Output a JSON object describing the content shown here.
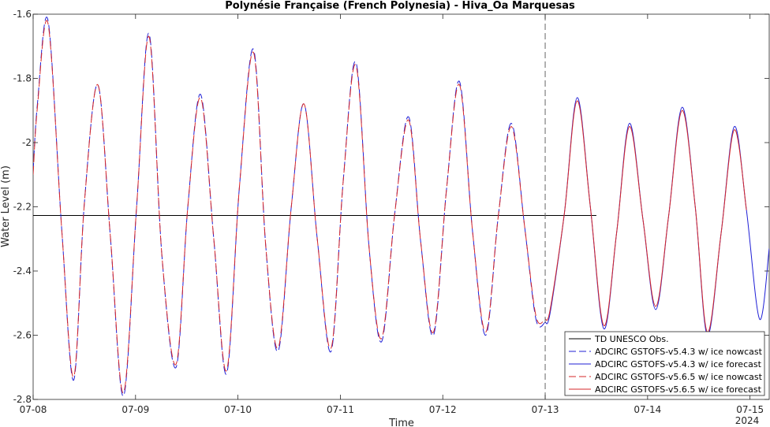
{
  "chart_data": {
    "type": "line",
    "title": "Polynésie Française (French Polynesia) - Hiva_Oa Marquesas",
    "xlabel": "Time",
    "ylabel": "Water Level (m)",
    "x_unit": "day",
    "xlim": [
      "2024-07-08 00:00",
      "2024-07-15 04:30"
    ],
    "ylim": [
      -2.8,
      -1.6
    ],
    "x_ticks": [
      {
        "x": "2024-07-08",
        "label": "07-08"
      },
      {
        "x": "2024-07-09",
        "label": "07-09"
      },
      {
        "x": "2024-07-10",
        "label": "07-10"
      },
      {
        "x": "2024-07-11",
        "label": "07-11"
      },
      {
        "x": "2024-07-12",
        "label": "07-12"
      },
      {
        "x": "2024-07-13",
        "label": "07-13"
      },
      {
        "x": "2024-07-14",
        "label": "07-14"
      },
      {
        "x": "2024-07-15",
        "label": "07-15"
      }
    ],
    "x_year_label": "2024",
    "y_ticks": [
      {
        "y": -2.8,
        "label": "-2.8"
      },
      {
        "y": -2.6,
        "label": "-2.6"
      },
      {
        "y": -2.4,
        "label": "-2.4"
      },
      {
        "y": -2.2,
        "label": "-2.2"
      },
      {
        "y": -2.0,
        "label": "-2"
      },
      {
        "y": -1.8,
        "label": "-1.8"
      },
      {
        "y": -1.6,
        "label": "-1.6"
      }
    ],
    "nowcast_end": "2024-07-13 00:00",
    "grid": false,
    "legend_position": "bottom-right",
    "series": [
      {
        "name": "TD UNESCO Obs.",
        "color": "#000000",
        "dash": "solid",
        "x": [
          "2024-07-08 00:00",
          "2024-07-13 12:00"
        ],
        "y": [
          -2.227,
          -2.227
        ]
      },
      {
        "name": "ADCIRC GSTOFS-v5.4.3 w/ ice nowcast",
        "color": "#1f1fd6",
        "dash": "dashed",
        "x": [
          "2024-07-08 00:00",
          "2024-07-08 01:00",
          "2024-07-08 03:30",
          "2024-07-08 06:45",
          "2024-07-08 09:30",
          "2024-07-08 12:00",
          "2024-07-08 15:10",
          "2024-07-08 18:05",
          "2024-07-08 21:10",
          "2024-07-09 00:15",
          "2024-07-09 03:10",
          "2024-07-09 06:10",
          "2024-07-09 09:30",
          "2024-07-09 12:15",
          "2024-07-09 15:15",
          "2024-07-09 18:20",
          "2024-07-09 21:20",
          "2024-07-10 00:20",
          "2024-07-10 03:40",
          "2024-07-10 06:30",
          "2024-07-10 09:25",
          "2024-07-10 12:30",
          "2024-07-10 15:30",
          "2024-07-10 18:35",
          "2024-07-10 21:50",
          "2024-07-11 00:40",
          "2024-07-11 03:40",
          "2024-07-11 06:45",
          "2024-07-11 09:40",
          "2024-07-11 12:45",
          "2024-07-11 16:00",
          "2024-07-11 18:50",
          "2024-07-11 21:50",
          "2024-07-12 00:55",
          "2024-07-12 03:55",
          "2024-07-12 07:00",
          "2024-07-12 10:05",
          "2024-07-12 13:00",
          "2024-07-12 16:05",
          "2024-07-12 19:10",
          "2024-07-12 21:50",
          "2024-07-13 00:00"
        ],
        "y": [
          -2.09,
          -1.88,
          -1.62,
          -2.28,
          -2.74,
          -2.19,
          -1.82,
          -2.29,
          -2.79,
          -2.2,
          -1.66,
          -2.35,
          -2.7,
          -2.2,
          -1.85,
          -2.3,
          -2.72,
          -2.14,
          -1.71,
          -2.32,
          -2.65,
          -2.2,
          -1.88,
          -2.3,
          -2.65,
          -2.12,
          -1.75,
          -2.33,
          -2.62,
          -2.22,
          -1.92,
          -2.31,
          -2.6,
          -2.14,
          -1.81,
          -2.28,
          -2.6,
          -2.23,
          -1.94,
          -2.26,
          -2.55,
          -2.56
        ]
      },
      {
        "name": "ADCIRC GSTOFS-v5.4.3 w/ ice forecast",
        "color": "#1f1fd6",
        "dash": "solid",
        "x": [
          "2024-07-13 00:00",
          "2024-07-13 01:10",
          "2024-07-13 04:30",
          "2024-07-13 07:30",
          "2024-07-13 10:35",
          "2024-07-13 13:45",
          "2024-07-13 16:45",
          "2024-07-13 19:45",
          "2024-07-13 22:55",
          "2024-07-14 01:55",
          "2024-07-14 04:55",
          "2024-07-14 08:05",
          "2024-07-14 11:10",
          "2024-07-14 14:00",
          "2024-07-14 17:15",
          "2024-07-14 20:20",
          "2024-07-14 23:10",
          "2024-07-15 02:15",
          "2024-07-15 04:30"
        ],
        "y": [
          -2.56,
          -2.53,
          -2.22,
          -1.86,
          -2.2,
          -2.58,
          -2.28,
          -1.94,
          -2.24,
          -2.52,
          -2.23,
          -1.89,
          -2.2,
          -2.6,
          -2.28,
          -1.95,
          -2.21,
          -2.55,
          -2.33
        ]
      },
      {
        "name": "ADCIRC GSTOFS-v5.6.5 w/ ice nowcast",
        "color": "#d62728",
        "dash": "dashed",
        "x": [
          "2024-07-08 00:00",
          "2024-07-08 01:00",
          "2024-07-08 03:30",
          "2024-07-08 06:45",
          "2024-07-08 09:30",
          "2024-07-08 12:00",
          "2024-07-08 15:10",
          "2024-07-08 18:05",
          "2024-07-08 21:10",
          "2024-07-09 00:15",
          "2024-07-09 03:10",
          "2024-07-09 06:10",
          "2024-07-09 09:30",
          "2024-07-09 12:15",
          "2024-07-09 15:15",
          "2024-07-09 18:20",
          "2024-07-09 21:20",
          "2024-07-10 00:20",
          "2024-07-10 03:40",
          "2024-07-10 06:30",
          "2024-07-10 09:25",
          "2024-07-10 12:30",
          "2024-07-10 15:30",
          "2024-07-10 18:35",
          "2024-07-10 21:50",
          "2024-07-11 00:40",
          "2024-07-11 03:40",
          "2024-07-11 06:45",
          "2024-07-11 09:40",
          "2024-07-11 12:45",
          "2024-07-11 16:00",
          "2024-07-11 18:50",
          "2024-07-11 21:50",
          "2024-07-12 00:55",
          "2024-07-12 03:55",
          "2024-07-12 07:00",
          "2024-07-12 10:05",
          "2024-07-12 13:00",
          "2024-07-12 16:05",
          "2024-07-12 19:10",
          "2024-07-12 21:50",
          "2024-07-13 00:00"
        ],
        "y": [
          -2.1,
          -1.89,
          -1.63,
          -2.28,
          -2.73,
          -2.19,
          -1.82,
          -2.29,
          -2.78,
          -2.2,
          -1.67,
          -2.35,
          -2.69,
          -2.2,
          -1.86,
          -2.3,
          -2.71,
          -2.14,
          -1.72,
          -2.32,
          -2.64,
          -2.2,
          -1.88,
          -2.3,
          -2.64,
          -2.12,
          -1.76,
          -2.33,
          -2.61,
          -2.22,
          -1.93,
          -2.31,
          -2.59,
          -2.14,
          -1.82,
          -2.28,
          -2.59,
          -2.23,
          -1.95,
          -2.26,
          -2.54,
          -2.55
        ]
      },
      {
        "name": "ADCIRC GSTOFS-v5.6.5 w/ ice forecast",
        "color": "#d62728",
        "dash": "solid",
        "x": [
          "2024-07-13 00:00",
          "2024-07-13 01:10",
          "2024-07-13 04:30",
          "2024-07-13 07:30",
          "2024-07-13 10:35",
          "2024-07-13 13:45",
          "2024-07-13 16:45",
          "2024-07-13 19:45",
          "2024-07-13 22:55",
          "2024-07-14 01:55",
          "2024-07-14 04:55",
          "2024-07-14 08:05",
          "2024-07-14 11:10",
          "2024-07-14 14:00",
          "2024-07-14 17:15",
          "2024-07-14 20:20",
          "2024-07-14 23:10"
        ],
        "y": [
          -2.55,
          -2.52,
          -2.22,
          -1.87,
          -2.2,
          -2.57,
          -2.28,
          -1.95,
          -2.24,
          -2.51,
          -2.23,
          -1.9,
          -2.2,
          -2.59,
          -2.28,
          -1.96,
          -2.21
        ]
      }
    ]
  }
}
